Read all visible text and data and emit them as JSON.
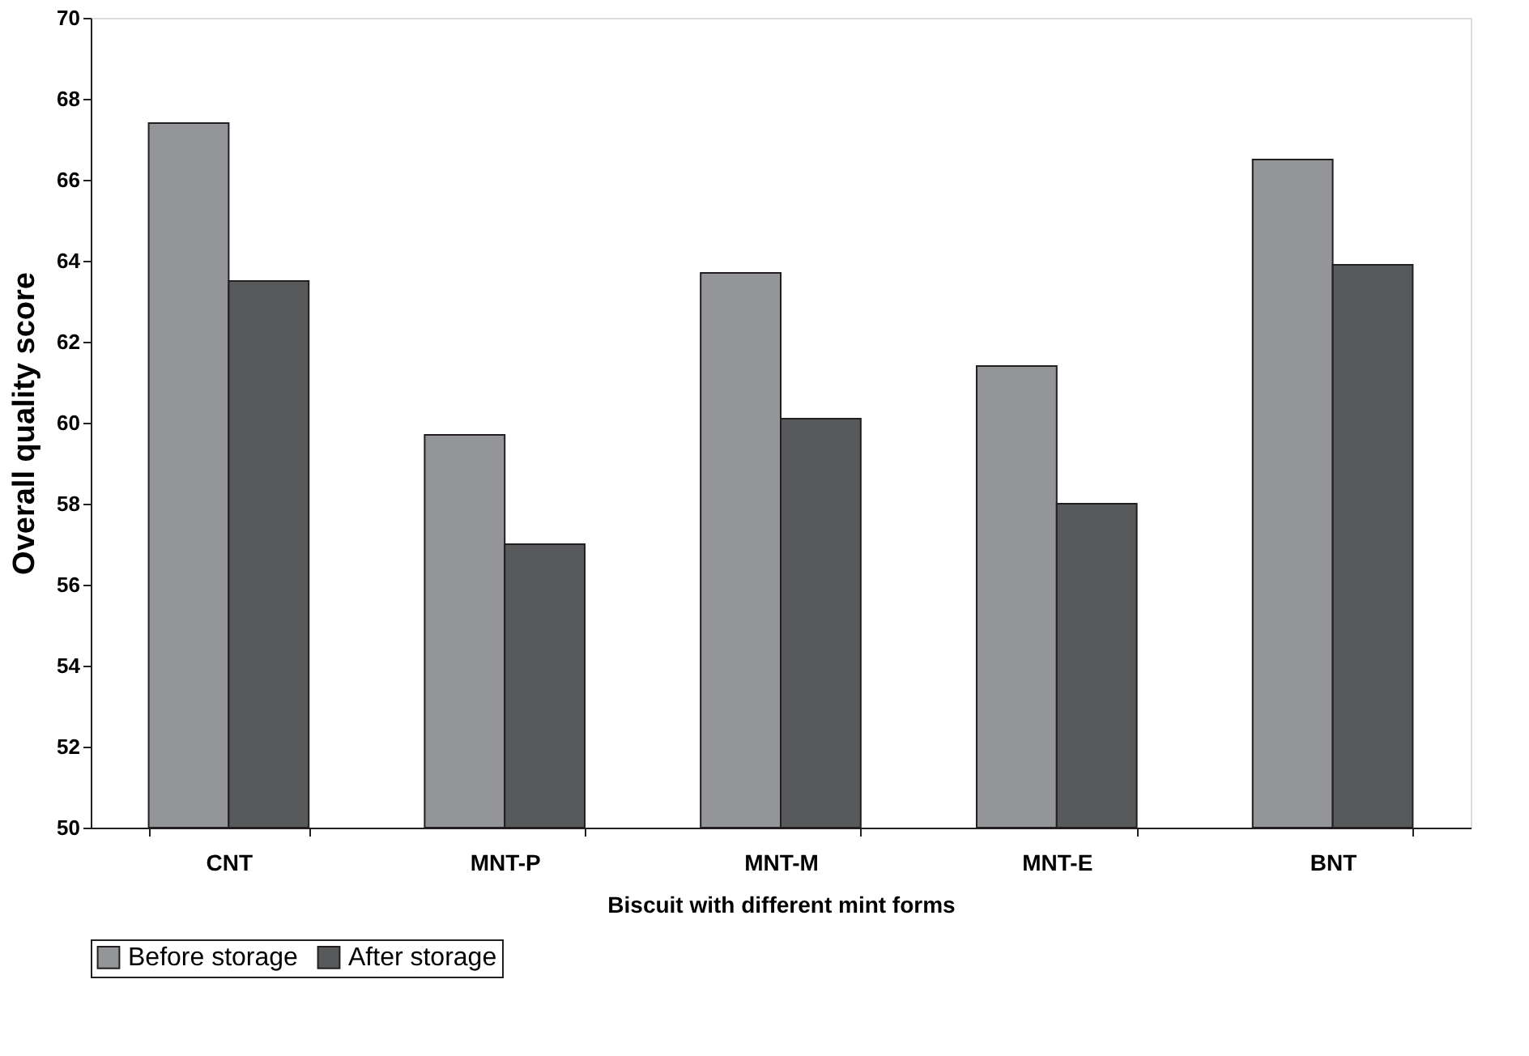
{
  "chart_data": {
    "type": "bar",
    "categories": [
      "CNT",
      "MNT-P",
      "MNT-M",
      "MNT-E",
      "BNT"
    ],
    "series": [
      {
        "name": "Before storage",
        "color": "#939598",
        "values": [
          67.4,
          59.7,
          63.7,
          61.4,
          66.5
        ]
      },
      {
        "name": "After storage",
        "color": "#58595b",
        "values": [
          63.5,
          57.0,
          60.1,
          58.0,
          63.9
        ]
      }
    ],
    "xlabel": "Biscuit with different mint forms",
    "ylabel": "Overall quality score",
    "ylim": [
      50,
      70
    ],
    "yticks": [
      50,
      52,
      54,
      56,
      58,
      60,
      62,
      64,
      66,
      68,
      70
    ],
    "grid": false,
    "legend": "bottom"
  }
}
